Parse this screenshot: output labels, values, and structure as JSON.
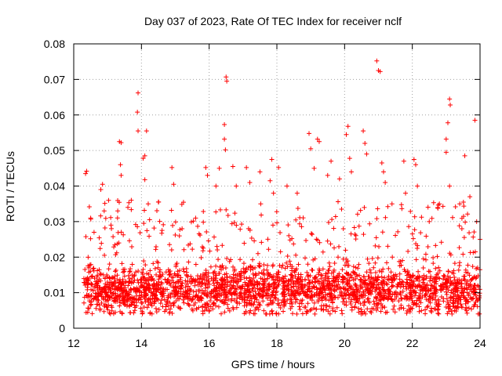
{
  "chart_data": {
    "type": "scatter",
    "title": "Day 037 of 2023, Rate Of TEC Index for receiver nclf",
    "xlabel": "GPS time / hours",
    "ylabel": "ROTI / TECUs",
    "xlim": [
      12,
      24
    ],
    "ylim": [
      0,
      0.08
    ],
    "x_ticks": [
      12,
      14,
      16,
      18,
      20,
      22,
      24
    ],
    "x_tick_labels": [
      "12",
      "14",
      "16",
      "18",
      "20",
      "22",
      "24"
    ],
    "y_ticks": [
      0,
      0.01,
      0.02,
      0.03,
      0.04,
      0.05,
      0.06,
      0.07,
      0.08
    ],
    "y_tick_labels": [
      "0",
      "0.01",
      "0.02",
      "0.03",
      "0.04",
      "0.05",
      "0.06",
      "0.07",
      "0.08"
    ],
    "grid": true,
    "marker": "+",
    "color": "#ff0000",
    "series": [
      {
        "name": "ROTI",
        "points": [
          [
            12.35,
            0.0435
          ],
          [
            12.38,
            0.0442
          ],
          [
            12.5,
            0.031
          ],
          [
            12.6,
            0.027
          ],
          [
            12.8,
            0.039
          ],
          [
            12.85,
            0.0405
          ],
          [
            12.9,
            0.033
          ],
          [
            13.1,
            0.029
          ],
          [
            13.3,
            0.033
          ],
          [
            13.35,
            0.0525
          ],
          [
            13.4,
            0.0522
          ],
          [
            13.38,
            0.046
          ],
          [
            13.4,
            0.043
          ],
          [
            13.6,
            0.034
          ],
          [
            13.7,
            0.036
          ],
          [
            13.9,
            0.0662
          ],
          [
            13.88,
            0.0608
          ],
          [
            13.9,
            0.0555
          ],
          [
            14.05,
            0.0478
          ],
          [
            14.1,
            0.0485
          ],
          [
            14.15,
            0.0555
          ],
          [
            14.1,
            0.0418
          ],
          [
            14.2,
            0.035
          ],
          [
            14.5,
            0.0355
          ],
          [
            14.9,
            0.0452
          ],
          [
            14.95,
            0.0405
          ],
          [
            15.2,
            0.028
          ],
          [
            15.6,
            0.031
          ],
          [
            15.9,
            0.0452
          ],
          [
            15.95,
            0.043
          ],
          [
            16.2,
            0.04
          ],
          [
            16.3,
            0.045
          ],
          [
            16.45,
            0.0573
          ],
          [
            16.5,
            0.0707
          ],
          [
            16.52,
            0.0695
          ],
          [
            16.45,
            0.0532
          ],
          [
            16.48,
            0.0502
          ],
          [
            16.7,
            0.0455
          ],
          [
            16.8,
            0.04
          ],
          [
            17.1,
            0.0452
          ],
          [
            17.2,
            0.041
          ],
          [
            17.5,
            0.044
          ],
          [
            17.8,
            0.0415
          ],
          [
            17.85,
            0.0475
          ],
          [
            17.9,
            0.038
          ],
          [
            18.05,
            0.0452
          ],
          [
            18.3,
            0.04
          ],
          [
            18.6,
            0.038
          ],
          [
            18.95,
            0.0548
          ],
          [
            19.0,
            0.0505
          ],
          [
            19.2,
            0.0532
          ],
          [
            19.25,
            0.0525
          ],
          [
            19.1,
            0.045
          ],
          [
            19.5,
            0.043
          ],
          [
            19.6,
            0.047
          ],
          [
            19.85,
            0.042
          ],
          [
            20.05,
            0.0545
          ],
          [
            20.1,
            0.0568
          ],
          [
            20.15,
            0.0478
          ],
          [
            20.2,
            0.044
          ],
          [
            20.55,
            0.0555
          ],
          [
            20.6,
            0.052
          ],
          [
            20.65,
            0.049
          ],
          [
            20.95,
            0.0752
          ],
          [
            21.0,
            0.0725
          ],
          [
            21.05,
            0.0722
          ],
          [
            21.1,
            0.0465
          ],
          [
            21.15,
            0.044
          ],
          [
            21.2,
            0.041
          ],
          [
            21.4,
            0.035
          ],
          [
            21.75,
            0.047
          ],
          [
            21.8,
            0.038
          ],
          [
            22.05,
            0.0475
          ],
          [
            22.1,
            0.046
          ],
          [
            22.15,
            0.04
          ],
          [
            22.5,
            0.03
          ],
          [
            22.8,
            0.035
          ],
          [
            23.0,
            0.0532
          ],
          [
            23.05,
            0.0578
          ],
          [
            23.1,
            0.0645
          ],
          [
            23.12,
            0.0628
          ],
          [
            23.0,
            0.0495
          ],
          [
            23.1,
            0.04
          ],
          [
            23.4,
            0.035
          ],
          [
            23.55,
            0.0485
          ],
          [
            23.7,
            0.037
          ],
          [
            23.85,
            0.0585
          ],
          [
            23.9,
            0.03
          ],
          [
            24.0,
            0.025
          ]
        ],
        "background_band": {
          "description": "dense cluster of ROTI samples between 12.3 h and 24 h",
          "x_start": 12.3,
          "x_end": 24.0,
          "y_low": 0.004,
          "y_high": 0.024,
          "y_typical": 0.011
        }
      }
    ]
  }
}
